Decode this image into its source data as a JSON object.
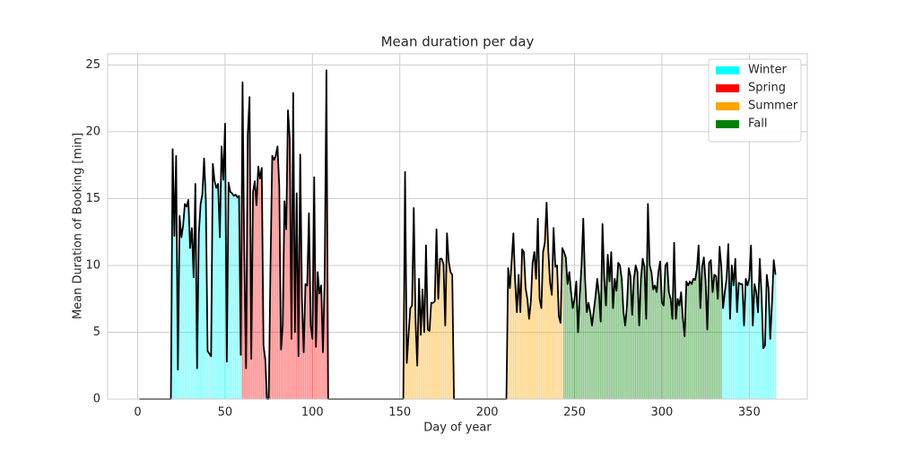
{
  "chart_data": {
    "type": "bar-line",
    "title": "Mean duration per day",
    "x_label": "Day of year",
    "y_label": "Mean Duration of Booking [min]",
    "xlim": [
      -17.2,
      383.2
    ],
    "ylim": [
      0,
      25.83
    ],
    "xticks": [
      0,
      50,
      100,
      150,
      200,
      250,
      300,
      350
    ],
    "yticks": [
      0,
      5,
      10,
      15,
      20,
      25
    ],
    "grid": true,
    "legend": "upper right",
    "line_color": "#000000",
    "series": [
      {
        "name": "Winter",
        "color": "#00ffff",
        "x": [
          1,
          2,
          3,
          4,
          5,
          6,
          7,
          8,
          9,
          10,
          11,
          12,
          13,
          14,
          15,
          16,
          17,
          18,
          19,
          20,
          21,
          22,
          23,
          24,
          25,
          26,
          27,
          28,
          29,
          30,
          31,
          32,
          33,
          34,
          35,
          36,
          37,
          38,
          39,
          40,
          41,
          42,
          43,
          44,
          45,
          46,
          47,
          48,
          49,
          50,
          51,
          52,
          53,
          54,
          55,
          56,
          57,
          58,
          59,
          335,
          336,
          337,
          338,
          339,
          340,
          341,
          342,
          343,
          344,
          345,
          346,
          347,
          348,
          349,
          350,
          351,
          352,
          353,
          354,
          355,
          356,
          357,
          358,
          359,
          360,
          361,
          362,
          363,
          364,
          365
        ],
        "values": [
          0,
          0,
          0,
          0,
          0,
          0,
          0,
          0,
          0,
          0,
          0,
          0,
          0,
          0,
          0,
          0,
          0,
          0,
          0,
          18.7,
          12.2,
          18.2,
          2.2,
          13.7,
          12.1,
          13,
          14.6,
          14.4,
          14.9,
          11.3,
          12.8,
          9.1,
          16.1,
          2.3,
          12.4,
          14.6,
          15.3,
          18,
          14.9,
          3.6,
          3.4,
          3.2,
          17.6,
          16.3,
          15.8,
          16.1,
          12.1,
          18.9,
          16.4,
          20.6,
          2.8,
          16.2,
          15.5,
          15.4,
          15.2,
          15.3,
          15.1,
          15.2,
          3.3,
          6.8,
          8,
          9,
          11.6,
          6,
          10,
          8.5,
          10.5,
          6.5,
          8.7,
          8.6,
          8.6,
          5.5,
          9,
          8.5,
          9,
          11.5,
          5.5,
          8.6,
          8,
          6.5,
          10.5,
          7.8,
          3.8,
          4,
          9.3,
          8.3,
          4.5,
          7.2,
          10.4,
          9.3
        ]
      },
      {
        "name": "Spring",
        "color": "#ff0000",
        "x": [
          60,
          61,
          62,
          63,
          64,
          65,
          66,
          67,
          68,
          69,
          70,
          71,
          72,
          73,
          74,
          75,
          76,
          77,
          78,
          79,
          80,
          81,
          82,
          83,
          84,
          85,
          86,
          87,
          88,
          89,
          90,
          91,
          92,
          93,
          94,
          95,
          96,
          97,
          98,
          99,
          100,
          101,
          102,
          103,
          104,
          105,
          106,
          107,
          108,
          109,
          110,
          111,
          112,
          113,
          114,
          115,
          116,
          117,
          118,
          119,
          120,
          121,
          122,
          123,
          124,
          125,
          126,
          127,
          128,
          129,
          130,
          131,
          132,
          133,
          134,
          135,
          136,
          137,
          138,
          139,
          140,
          141,
          142,
          143,
          144,
          145,
          146,
          147,
          148,
          149,
          150,
          151
        ],
        "values": [
          23.7,
          10.5,
          2.3,
          19.8,
          22.6,
          3,
          15.5,
          16.3,
          14.5,
          17.4,
          16.5,
          17.3,
          4,
          3,
          0,
          0,
          10,
          18.2,
          17.9,
          18.2,
          18.9,
          16,
          3.7,
          5.5,
          14.8,
          12.7,
          21.6,
          19.5,
          4.5,
          22.9,
          5,
          15.4,
          3.2,
          18.3,
          7.5,
          3.5,
          8.6,
          8.5,
          13.9,
          5.5,
          4.5,
          16.6,
          3.9,
          9.5,
          7.9,
          8.5,
          3.5,
          9,
          24.6,
          0,
          0,
          0,
          0,
          0,
          0,
          0,
          0,
          0,
          0,
          0,
          0,
          0,
          0,
          0,
          0,
          0,
          0,
          0,
          0,
          0,
          0,
          0,
          0,
          0,
          0,
          0,
          0,
          0,
          0,
          0,
          0,
          0,
          0,
          0,
          0,
          0,
          0,
          0,
          0,
          0,
          0,
          0
        ]
      },
      {
        "name": "Summer",
        "color": "#ffa500",
        "x": [
          152,
          153,
          154,
          155,
          156,
          157,
          158,
          159,
          160,
          161,
          162,
          163,
          164,
          165,
          166,
          167,
          168,
          169,
          170,
          171,
          172,
          173,
          174,
          175,
          176,
          177,
          178,
          179,
          180,
          181,
          182,
          183,
          184,
          185,
          186,
          187,
          188,
          189,
          190,
          191,
          192,
          193,
          194,
          195,
          196,
          197,
          198,
          199,
          200,
          201,
          202,
          203,
          204,
          205,
          206,
          207,
          208,
          209,
          210,
          211,
          212,
          213,
          214,
          215,
          216,
          217,
          218,
          219,
          220,
          221,
          222,
          223,
          224,
          225,
          226,
          227,
          228,
          229,
          230,
          231,
          232,
          233,
          234,
          235,
          236,
          237,
          238,
          239,
          240,
          241,
          242,
          243
        ],
        "values": [
          0,
          17,
          2.7,
          4.8,
          6.8,
          7,
          14.3,
          5.8,
          2.5,
          9,
          4.8,
          8.2,
          5,
          11.5,
          5.2,
          5.1,
          7.2,
          7.2,
          7.3,
          12.7,
          7.5,
          10.5,
          10.5,
          10.1,
          5.5,
          12.4,
          10.3,
          9.5,
          9.3,
          0,
          0,
          0,
          0,
          0,
          0,
          0,
          0,
          0,
          0,
          0,
          0,
          0,
          0,
          0,
          0,
          0,
          0,
          0,
          0,
          0,
          0,
          0,
          0,
          0,
          0,
          0,
          0,
          0,
          0,
          0,
          9.8,
          8.3,
          10.3,
          12.4,
          8.8,
          6.5,
          9.3,
          6.5,
          11.2,
          11,
          8.3,
          7.5,
          6,
          7.3,
          10.2,
          11,
          9,
          13.5,
          7.5,
          6.8,
          11,
          11.7,
          14.7,
          11,
          8.7,
          7.8,
          12.8,
          9.9,
          10,
          6.2,
          5.7,
          11.3
        ]
      },
      {
        "name": "Fall",
        "color": "#008000",
        "x": [
          244,
          245,
          246,
          247,
          248,
          249,
          250,
          251,
          252,
          253,
          254,
          255,
          256,
          257,
          258,
          259,
          260,
          261,
          262,
          263,
          264,
          265,
          266,
          267,
          268,
          269,
          270,
          271,
          272,
          273,
          274,
          275,
          276,
          277,
          278,
          279,
          280,
          281,
          282,
          283,
          284,
          285,
          286,
          287,
          288,
          289,
          290,
          291,
          292,
          293,
          294,
          295,
          296,
          297,
          298,
          299,
          300,
          301,
          302,
          303,
          304,
          305,
          306,
          307,
          308,
          309,
          310,
          311,
          312,
          313,
          314,
          315,
          316,
          317,
          318,
          319,
          320,
          321,
          322,
          323,
          324,
          325,
          326,
          327,
          328,
          329,
          330,
          331,
          332,
          333,
          334
        ],
        "values": [
          11,
          10.6,
          8.6,
          9.5,
          8,
          6.8,
          7.5,
          8.8,
          5,
          7.8,
          10,
          13.5,
          9,
          6.5,
          7.2,
          6.5,
          5.5,
          6.6,
          7.7,
          9,
          7.8,
          5.8,
          13.1,
          9,
          7,
          10.8,
          8.8,
          11,
          6.8,
          9,
          8.1,
          10.2,
          10,
          9,
          6.5,
          5.5,
          7,
          9.8,
          9.2,
          6.3,
          9,
          10,
          9.5,
          5.5,
          9,
          10.5,
          9.9,
          6,
          14.6,
          10,
          9.5,
          8.2,
          8.5,
          8,
          9.5,
          10.3,
          7.2,
          7,
          10,
          10.2,
          8,
          7.5,
          6,
          11.7,
          6,
          7.5,
          7,
          8,
          6,
          4.7,
          8.8,
          8.5,
          8.8,
          8.6,
          9,
          8.9,
          9.7,
          11.5,
          6.8,
          9.9,
          10.6,
          8.8,
          5.2,
          10.2,
          10.4,
          8,
          9.3,
          9.2,
          7.5,
          11.4,
          9.9
        ]
      }
    ]
  }
}
